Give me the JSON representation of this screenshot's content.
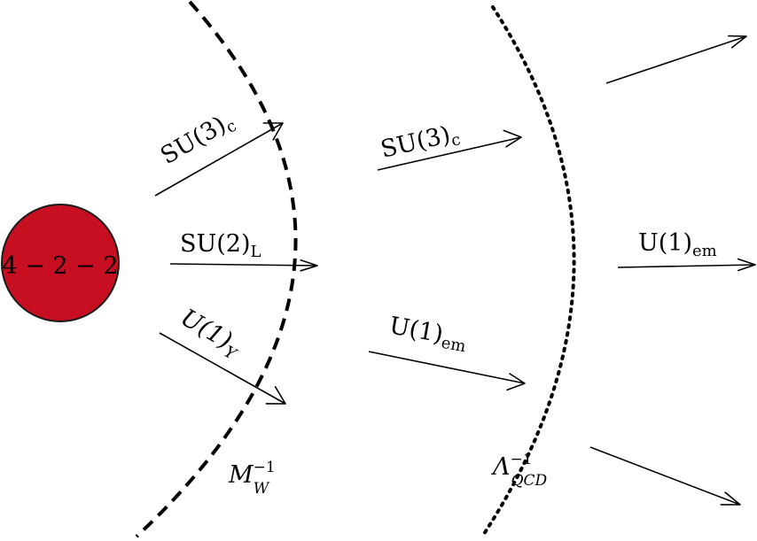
{
  "colors": {
    "node_fill": "#c80f22",
    "node_stroke": "#1a1a1a",
    "node_text": "#ffffff",
    "ink": "#000000"
  },
  "node": {
    "label": "4 − 2 − 2"
  },
  "left_zone": {
    "su3": {
      "base": "SU(3)",
      "sub": "c"
    },
    "su2": {
      "base": "SU(2)",
      "sub": "L"
    },
    "u1y": {
      "base": "U(1)",
      "sub": "Y"
    }
  },
  "middle_zone": {
    "su3": {
      "base": "SU(3)",
      "sub": "c"
    },
    "u1em": {
      "base": "U(1)",
      "sub": "em"
    }
  },
  "right_zone": {
    "u1em": {
      "base": "U(1)",
      "sub": "em"
    }
  },
  "boundaries": {
    "electroweak": {
      "base": "M",
      "sup": "−1",
      "sub": "W",
      "style": "dashed"
    },
    "qcd": {
      "base": "Λ",
      "sup": "−1",
      "sub": "QCD",
      "style": "dotted"
    }
  }
}
